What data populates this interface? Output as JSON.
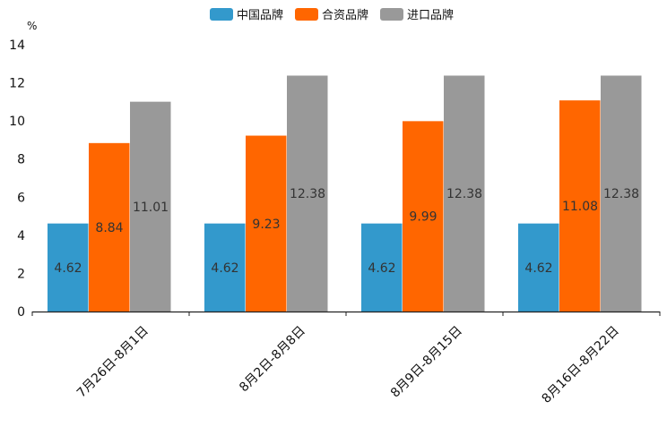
{
  "chart_data": {
    "type": "bar",
    "title": "",
    "ylabel": "%",
    "xlabel": "",
    "ylim": [
      0,
      14
    ],
    "yticks": [
      0,
      2,
      4,
      6,
      8,
      10,
      12,
      14
    ],
    "categories": [
      "7月26日-8月1日",
      "8月2日-8月8日",
      "8月9日-8月15日",
      "8月16日-8月22日"
    ],
    "series": [
      {
        "name": "中国品牌",
        "color": "#3399cc",
        "values": [
          4.62,
          4.62,
          4.62,
          4.62
        ],
        "labels": [
          "4.62",
          "4.62",
          "4.62",
          "4.62"
        ]
      },
      {
        "name": "合资品牌",
        "color": "#ff6600",
        "values": [
          8.84,
          9.23,
          9.99,
          11.08
        ],
        "labels": [
          "8.84",
          "9.23",
          "9.99",
          "11.08"
        ]
      },
      {
        "name": "进口品牌",
        "color": "#999999",
        "values": [
          11.01,
          12.38,
          12.38,
          12.38
        ],
        "labels": [
          "11.01",
          "12.38",
          "12.38",
          "12.38"
        ]
      }
    ],
    "legend_position": "top-center",
    "grid": false
  }
}
